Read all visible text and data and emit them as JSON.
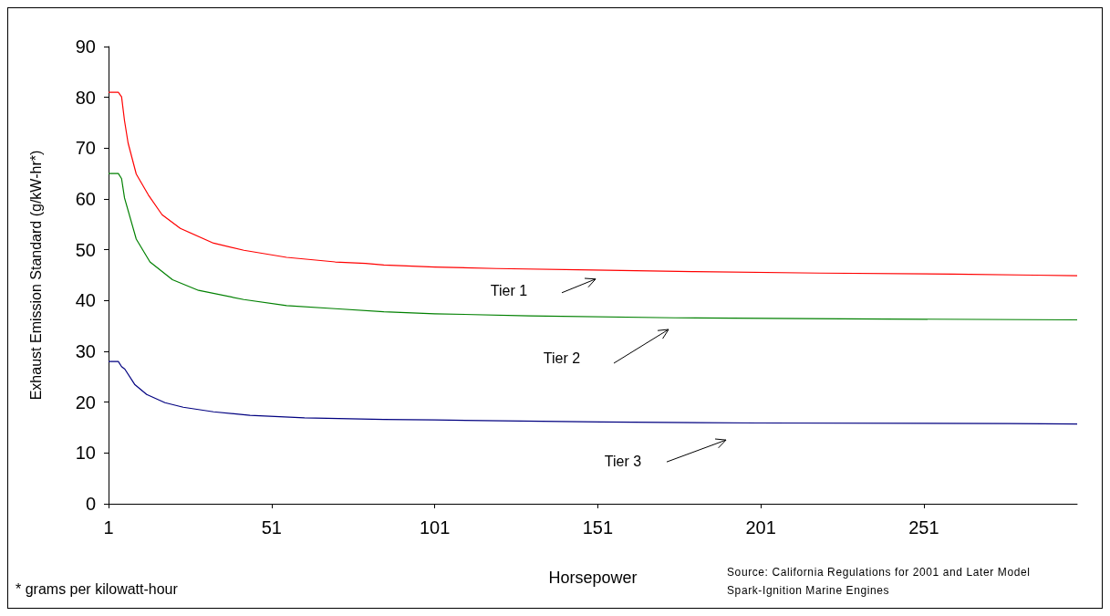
{
  "chart_data": {
    "type": "line",
    "xlabel": "Horsepower",
    "ylabel": "Exhaust Emission Standard (g/kW-hr*)",
    "xlim": [
      1,
      298
    ],
    "xticks": [
      1,
      51,
      101,
      151,
      201,
      251
    ],
    "ylim": [
      0,
      90
    ],
    "yticks": [
      0,
      10,
      20,
      30,
      40,
      50,
      60,
      70,
      80,
      90
    ],
    "grid": false,
    "marker": "none",
    "line_style": "solid",
    "series": [
      {
        "color": "#ff0000",
        "x": [
          1,
          4,
          5,
          5.9,
          7,
          9.5,
          13.2,
          17.4,
          23,
          33.2,
          42.5,
          55.6,
          70.5,
          79.8,
          85.4,
          101,
          120,
          149.6,
          180,
          219,
          260,
          285,
          298
        ],
        "values": [
          81,
          81,
          80.1,
          75.4,
          71,
          64.9,
          60.8,
          56.9,
          54.2,
          51.3,
          49.9,
          48.5,
          47.6,
          47.3,
          47,
          46.6,
          46.3,
          46,
          45.7,
          45.4,
          45.2,
          45,
          44.9
        ]
      },
      {
        "color": "#008000",
        "x": [
          1,
          4,
          5,
          5.9,
          9.5,
          13.7,
          20.6,
          28.6,
          42.5,
          55.6,
          70.5,
          85.4,
          101,
          130,
          174.7,
          226,
          298
        ],
        "values": [
          65,
          65,
          64,
          60.2,
          52.1,
          47.6,
          44.1,
          42,
          40.2,
          39,
          38.4,
          37.8,
          37.4,
          37,
          36.6,
          36.4,
          36.2
        ]
      },
      {
        "color": "#000080",
        "x": [
          1,
          4,
          5,
          6,
          9,
          12.7,
          18.3,
          23.9,
          33.2,
          44.4,
          61.1,
          85.4,
          101,
          152,
          200,
          276.7,
          298
        ],
        "values": [
          28,
          28,
          27,
          26.5,
          23.5,
          21.5,
          19.9,
          19,
          18.1,
          17.4,
          16.9,
          16.6,
          16.5,
          16.1,
          15.9,
          15.8,
          15.7
        ]
      }
    ],
    "annotations": [
      "Tier 1",
      "Tier 2",
      "Tier 3",
      "* grams per kilowatt-hour",
      "Source:  California Regulations for 2001 and Later Model  Spark-Ignition Marine Engines"
    ]
  }
}
